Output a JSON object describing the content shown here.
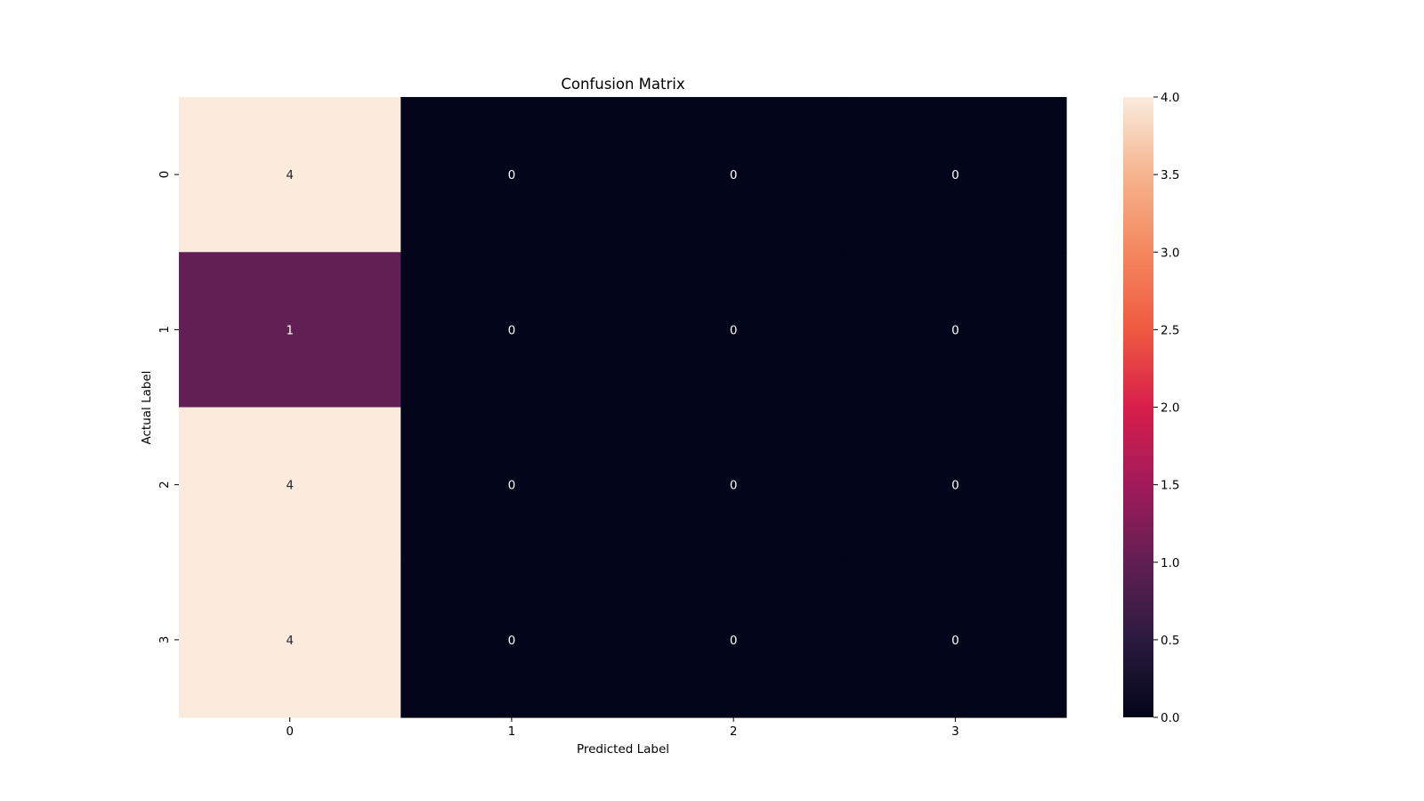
{
  "chart_data": {
    "type": "heatmap",
    "title": "Confusion Matrix",
    "xlabel": "Predicted Label",
    "ylabel": "Actual Label",
    "x_categories": [
      "0",
      "1",
      "2",
      "3"
    ],
    "y_categories": [
      "0",
      "1",
      "2",
      "3"
    ],
    "values": [
      [
        4,
        0,
        0,
        0
      ],
      [
        1,
        0,
        0,
        0
      ],
      [
        4,
        0,
        0,
        0
      ],
      [
        4,
        0,
        0,
        0
      ]
    ],
    "annotations": true,
    "colormap": "rocket",
    "vmin": 0,
    "vmax": 4,
    "colorbar": {
      "ticks": [
        0.0,
        0.5,
        1.0,
        1.5,
        2.0,
        2.5,
        3.0,
        3.5,
        4.0
      ],
      "tick_labels": [
        "0.0",
        "0.5",
        "1.0",
        "1.5",
        "2.0",
        "2.5",
        "3.0",
        "3.5",
        "4.0"
      ],
      "placement": "right"
    }
  }
}
